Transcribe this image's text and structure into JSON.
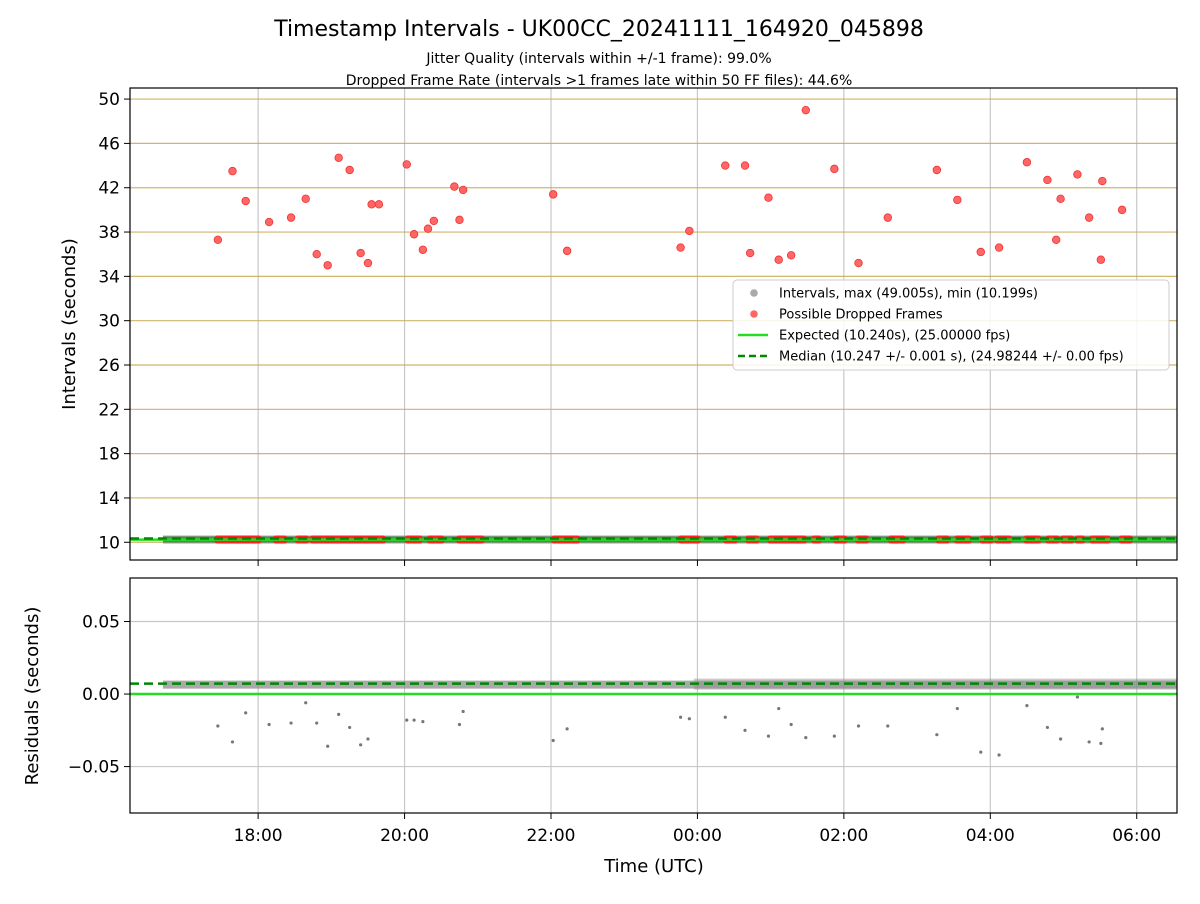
{
  "chart_data": [
    {
      "type": "scatter",
      "title": "Timestamp Intervals - UK00CC_20241111_164920_045898",
      "subtitle_lines": [
        "Jitter Quality (intervals within +/-1 frame): 99.0%",
        "Dropped Frame Rate (intervals >1 frames late within 50 FF files): 44.6%"
      ],
      "xlabel": "",
      "ylabel": "Intervals (seconds)",
      "x_unit": "hours since 00:00 UTC (negative = previous day)",
      "xlim": [
        -7.75,
        6.55
      ],
      "ylim": [
        8.4,
        51
      ],
      "yticks": [
        10,
        14,
        18,
        22,
        26,
        30,
        34,
        38,
        42,
        46,
        50
      ],
      "ygrid_color": "#c8a850",
      "xticks": [
        -6,
        -4,
        -2,
        0,
        2,
        4,
        6
      ],
      "xtick_labels": [
        "18:00",
        "20:00",
        "22:00",
        "00:00",
        "02:00",
        "04:00",
        "06:00"
      ],
      "show_xtick_labels": false,
      "grid": true,
      "legend_position": "right",
      "legend": [
        {
          "label": "Intervals, max (49.005s), min (10.199s)",
          "marker": "circle",
          "color": "#a0a0a0"
        },
        {
          "label": "Possible Dropped Frames",
          "marker": "circle",
          "color": "#ff5555"
        },
        {
          "label": "Expected (10.240s), (25.00000 fps)",
          "marker": "line",
          "color": "#22dd22"
        },
        {
          "label": "Median (10.247 +/- 0.001 s), (24.98244 +/- 0.00 fps)",
          "marker": "dashed",
          "color": "#008800"
        }
      ],
      "series": [
        {
          "name": "Intervals, max (49.005s), min (10.199s)",
          "color": "#a0a0a0",
          "band": {
            "x_range": [
              -7.3,
              6.55
            ],
            "y": 10.247
          }
        },
        {
          "name": "Possible Dropped Frames",
          "color": "#ff5555",
          "x": [
            -6.55,
            -6.35,
            -6.17,
            -5.85,
            -5.55,
            -5.35,
            -5.2,
            -5.05,
            -4.9,
            -4.75,
            -4.6,
            -4.5,
            -4.45,
            -4.35,
            -3.97,
            -3.87,
            -3.75,
            -3.68,
            -3.6,
            -3.32,
            -3.25,
            -3.2,
            -1.97,
            -1.78,
            -0.23,
            -0.11,
            0.38,
            0.65,
            0.72,
            0.97,
            1.11,
            1.28,
            1.48,
            1.87,
            2.2,
            2.6,
            3.27,
            3.55,
            3.87,
            4.12,
            4.5,
            4.78,
            4.9,
            4.96,
            5.19,
            5.35,
            5.51,
            5.53,
            5.8
          ],
          "y": [
            37.3,
            43.5,
            40.8,
            38.9,
            39.3,
            41.0,
            36.0,
            35.0,
            44.7,
            43.6,
            36.1,
            35.2,
            40.5,
            40.5,
            44.1,
            37.8,
            36.4,
            38.3,
            39.0,
            42.1,
            39.1,
            41.8,
            41.4,
            36.3,
            36.6,
            38.1,
            44.0,
            44.0,
            36.1,
            41.1,
            35.5,
            35.9,
            49.0,
            43.7,
            35.2,
            39.3,
            43.6,
            40.9,
            36.2,
            36.6,
            44.3,
            42.7,
            37.3,
            41.0,
            43.2,
            39.3,
            35.5,
            42.6,
            40.0
          ],
          "baseline_segments_x": [
            [
              -6.6,
              -5.95
            ],
            [
              -5.8,
              -5.6
            ],
            [
              -5.5,
              -5.3
            ],
            [
              -5.3,
              -4.25
            ],
            [
              -4.0,
              -3.75
            ],
            [
              -3.7,
              -3.45
            ],
            [
              -3.3,
              -2.9
            ],
            [
              -2.0,
              -1.6
            ],
            [
              -0.27,
              0.05
            ],
            [
              0.35,
              0.55
            ],
            [
              0.65,
              0.85
            ],
            [
              0.95,
              1.5
            ],
            [
              1.55,
              1.7
            ],
            [
              1.85,
              2.05
            ],
            [
              2.15,
              2.35
            ],
            [
              2.6,
              2.85
            ],
            [
              3.25,
              3.45
            ],
            [
              3.5,
              3.75
            ],
            [
              3.85,
              4.05
            ],
            [
              4.05,
              4.3
            ],
            [
              4.45,
              4.7
            ],
            [
              4.75,
              4.95
            ],
            [
              4.95,
              5.15
            ],
            [
              5.15,
              5.3
            ],
            [
              5.35,
              5.65
            ],
            [
              5.75,
              5.95
            ]
          ]
        },
        {
          "name": "Expected (10.240s), (25.00000 fps)",
          "color": "#22dd22",
          "y": 10.24
        },
        {
          "name": "Median (10.247 +/- 0.001 s), (24.98244 +/- 0.00 fps)",
          "color": "#008800",
          "y": 10.247
        }
      ]
    },
    {
      "type": "scatter",
      "title": "",
      "xlabel": "Time (UTC)",
      "ylabel": "Residuals (seconds)",
      "x_unit": "hours since 00:00 UTC (negative = previous day)",
      "xlim": [
        -7.75,
        6.55
      ],
      "ylim": [
        -0.082,
        0.08
      ],
      "yticks": [
        -0.05,
        0.0,
        0.05
      ],
      "ytick_labels": [
        "−0.05",
        "0.00",
        "0.05"
      ],
      "xticks": [
        -6,
        -4,
        -2,
        0,
        2,
        4,
        6
      ],
      "xtick_labels": [
        "18:00",
        "20:00",
        "22:00",
        "00:00",
        "02:00",
        "04:00",
        "06:00"
      ],
      "grid": true,
      "series": [
        {
          "name": "Residuals",
          "color": "#777777",
          "band": {
            "x_range": [
              -7.3,
              6.55
            ],
            "y": 0.0065
          },
          "x": [
            -6.55,
            -6.35,
            -6.17,
            -5.85,
            -5.55,
            -5.35,
            -5.2,
            -5.05,
            -4.9,
            -4.75,
            -4.6,
            -4.5,
            -3.97,
            -3.87,
            -3.75,
            -3.25,
            -3.2,
            -1.97,
            -1.78,
            -0.23,
            -0.11,
            0.38,
            0.65,
            0.97,
            1.11,
            1.28,
            1.48,
            1.87,
            2.2,
            2.6,
            3.27,
            3.55,
            3.87,
            4.12,
            4.5,
            4.78,
            4.96,
            5.19,
            5.35,
            5.51,
            5.53
          ],
          "y": [
            -0.022,
            -0.033,
            -0.013,
            -0.021,
            -0.02,
            -0.006,
            -0.02,
            -0.036,
            -0.014,
            -0.023,
            -0.035,
            -0.031,
            -0.018,
            -0.018,
            -0.019,
            -0.021,
            -0.012,
            -0.032,
            -0.024,
            -0.016,
            -0.017,
            -0.016,
            -0.025,
            -0.029,
            -0.01,
            -0.021,
            -0.03,
            -0.029,
            -0.022,
            -0.022,
            -0.028,
            -0.01,
            -0.04,
            -0.042,
            -0.008,
            -0.023,
            -0.031,
            -0.002,
            -0.033,
            -0.034,
            -0.024
          ]
        },
        {
          "name": "Expected",
          "color": "#22dd22",
          "y": 0.0
        },
        {
          "name": "Median",
          "color": "#008800",
          "y": 0.0065
        }
      ]
    }
  ]
}
